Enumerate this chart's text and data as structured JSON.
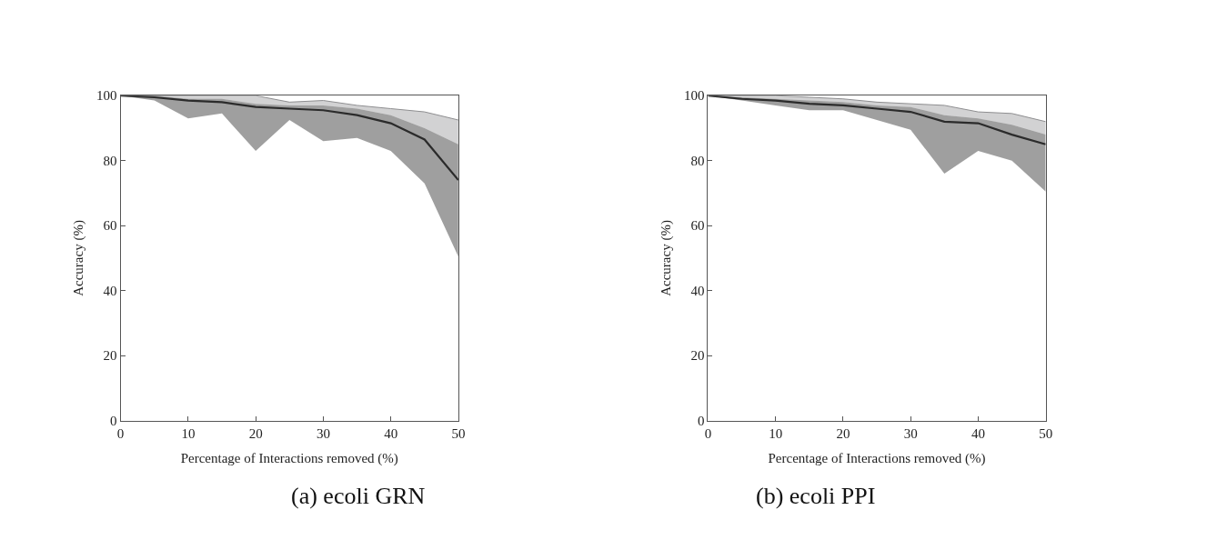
{
  "chart_data": [
    {
      "type": "line",
      "title": "(a) ecoli GRN",
      "xlabel": "Percentage of Interactions removed (%)",
      "ylabel": "Accuracy (%)",
      "x": [
        0,
        5,
        10,
        15,
        20,
        25,
        30,
        35,
        40,
        45,
        50
      ],
      "xlim": [
        0,
        50
      ],
      "xticks": [
        0,
        10,
        20,
        30,
        40,
        50
      ],
      "ylim": [
        0,
        100
      ],
      "yticks": [
        0,
        20,
        40,
        60,
        80,
        100
      ],
      "series": [
        {
          "color": "#8e8e90",
          "values": [
            100,
            100,
            100,
            100,
            100,
            98,
            98.5,
            97,
            96,
            95,
            92.5
          ],
          "lower": [
            100,
            100,
            99,
            99,
            97.5,
            97,
            97,
            96,
            94,
            90,
            85
          ],
          "upper": [
            100,
            100,
            100,
            100,
            100,
            98,
            98.5,
            97,
            96,
            95,
            92.5
          ]
        },
        {
          "color": "#2b2b2b",
          "values": [
            100,
            99.5,
            98.5,
            98,
            96.5,
            96,
            95.5,
            94,
            91.5,
            86.5,
            74
          ],
          "lower": [
            100,
            98.5,
            93,
            94.5,
            83,
            92.5,
            86,
            87,
            83,
            73,
            50.5
          ],
          "upper": [
            100,
            100,
            99,
            99,
            97.5,
            97,
            97,
            96,
            94,
            90,
            85
          ]
        }
      ]
    },
    {
      "type": "line",
      "title": "(b) ecoli PPI",
      "xlabel": "Percentage of Interactions removed (%)",
      "ylabel": "Accuracy (%)",
      "x": [
        0,
        5,
        10,
        15,
        20,
        25,
        30,
        35,
        40,
        45,
        50
      ],
      "xlim": [
        0,
        50
      ],
      "xticks": [
        0,
        10,
        20,
        30,
        40,
        50
      ],
      "ylim": [
        0,
        100
      ],
      "yticks": [
        0,
        20,
        40,
        60,
        80,
        100
      ],
      "series": [
        {
          "color": "#8e8e90",
          "values": [
            100,
            100,
            100,
            99.5,
            99,
            98,
            97.5,
            97,
            95,
            94.5,
            92
          ],
          "lower": [
            100,
            99.5,
            99,
            98.5,
            98,
            97,
            96.5,
            94,
            93,
            91,
            88
          ],
          "upper": [
            100,
            100,
            100,
            99.5,
            99,
            98,
            97.5,
            97,
            95,
            94.5,
            92
          ]
        },
        {
          "color": "#2b2b2b",
          "values": [
            100,
            99,
            98.5,
            97.5,
            97,
            96,
            95,
            92,
            91.5,
            88,
            85
          ],
          "lower": [
            100,
            98.5,
            97,
            95.5,
            95.5,
            92.5,
            89.5,
            76,
            83,
            80,
            70.5
          ],
          "upper": [
            100,
            99.5,
            99,
            98.5,
            98,
            97,
            96.5,
            94,
            93,
            91,
            88
          ]
        }
      ]
    }
  ]
}
